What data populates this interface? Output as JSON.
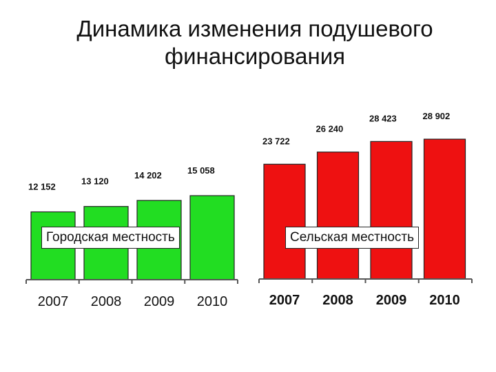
{
  "title": {
    "line1": "Динамика изменения подушевого",
    "line2": "финансирования"
  },
  "colors": {
    "urban": "#22dd22",
    "rural": "#ee1111",
    "outline": "#222222"
  },
  "chart_data": [
    {
      "type": "bar",
      "panel_label": "Городская местность",
      "categories": [
        "2007",
        "2008",
        "2009",
        "2010"
      ],
      "values": [
        12152,
        13120,
        14202,
        15058
      ],
      "value_labels": [
        "12 152",
        "13 120",
        "14 202",
        "15 058"
      ],
      "color": "#22dd22",
      "bold_ticks": false,
      "legend": "none",
      "grid": false
    },
    {
      "type": "bar",
      "panel_label": "Сельская местность",
      "categories": [
        "2007",
        "2008",
        "2009",
        "2010"
      ],
      "values": [
        23722,
        26240,
        28423,
        28902
      ],
      "value_labels": [
        "23 722",
        "26 240",
        "28 423",
        "28 902"
      ],
      "color": "#ee1111",
      "bold_ticks": true,
      "legend": "none",
      "grid": false
    }
  ]
}
